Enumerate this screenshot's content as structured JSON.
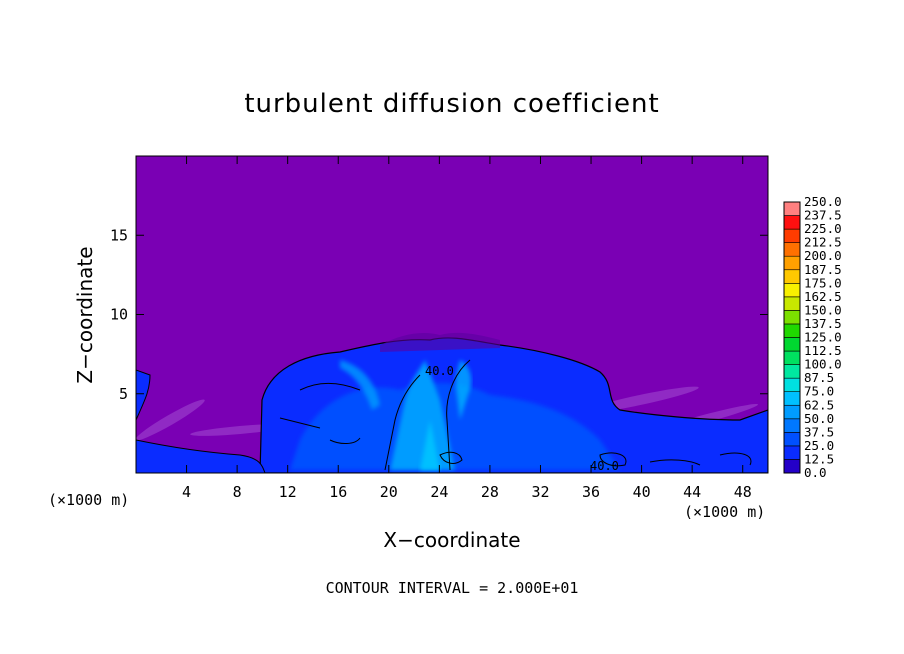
{
  "chart_data": {
    "type": "heatmap",
    "title": "turbulent diffusion coefficient",
    "xlabel": "X−coordinate",
    "ylabel": "Z−coordinate",
    "x_unit_left": "(×1000 m)",
    "x_unit_right": "(×1000 m)",
    "xlim": [
      0,
      50
    ],
    "ylim": [
      0,
      20
    ],
    "x_ticks": [
      4,
      8,
      12,
      16,
      20,
      24,
      28,
      32,
      36,
      40,
      44,
      48
    ],
    "y_ticks": [
      5,
      10,
      15
    ],
    "colorbar": {
      "min": 0.0,
      "max": 250.0,
      "labels": [
        "0.0",
        "12.5",
        "25.0",
        "37.5",
        "50.0",
        "62.5",
        "75.0",
        "87.5",
        "100.0",
        "112.5",
        "125.0",
        "137.5",
        "150.0",
        "162.5",
        "175.0",
        "187.5",
        "200.0",
        "212.5",
        "225.0",
        "237.5",
        "250.0"
      ],
      "colors": [
        "#7a00b4",
        "#2400c8",
        "#0a2cff",
        "#0050ff",
        "#0078ff",
        "#009cff",
        "#00c0ff",
        "#00e0e0",
        "#00e8a0",
        "#00e060",
        "#00d830",
        "#20d800",
        "#7ce000",
        "#c8e800",
        "#f8f000",
        "#ffc800",
        "#ffa000",
        "#ff7000",
        "#ff3c00",
        "#ff1010",
        "#ff8080"
      ]
    },
    "contour_labels": [
      "40.0",
      "40.0"
    ],
    "footer": "CONTOUR INTERVAL = 2.000E+01"
  }
}
